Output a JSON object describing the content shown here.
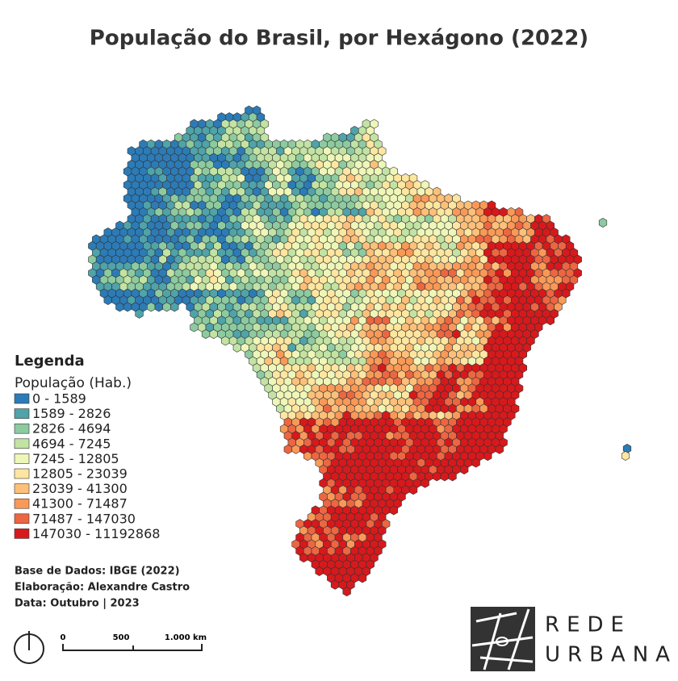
{
  "title": "População do Brasil, por Hexágono (2022)",
  "legend": {
    "title": "Legenda",
    "subtitle": "População (Hab.)",
    "items": [
      {
        "label": "0 - 1589",
        "color": "#2c7bb6"
      },
      {
        "label": "1589 - 2826",
        "color": "#4fa3a9"
      },
      {
        "label": "2826 - 4694",
        "color": "#8dcaa0"
      },
      {
        "label": "4694 - 7245",
        "color": "#c2e3a3"
      },
      {
        "label": "7245 - 12805",
        "color": "#eef6b8"
      },
      {
        "label": "12805 - 23039",
        "color": "#fee6a0"
      },
      {
        "label": "23039 - 41300",
        "color": "#fdc07a"
      },
      {
        "label": "41300 - 71487",
        "color": "#f99958"
      },
      {
        "label": "71487 - 147030",
        "color": "#ec6642"
      },
      {
        "label": "147030 - 11192868",
        "color": "#d7191c"
      }
    ]
  },
  "credits": [
    "Base de Dados: IBGE (2022)",
    "Elaboração: Alexandre Castro",
    "Data: Outubro | 2023"
  ],
  "scale_bar": [
    "0",
    "500",
    "1.000 km"
  ],
  "logo": [
    "REDE",
    "URBANA"
  ]
}
